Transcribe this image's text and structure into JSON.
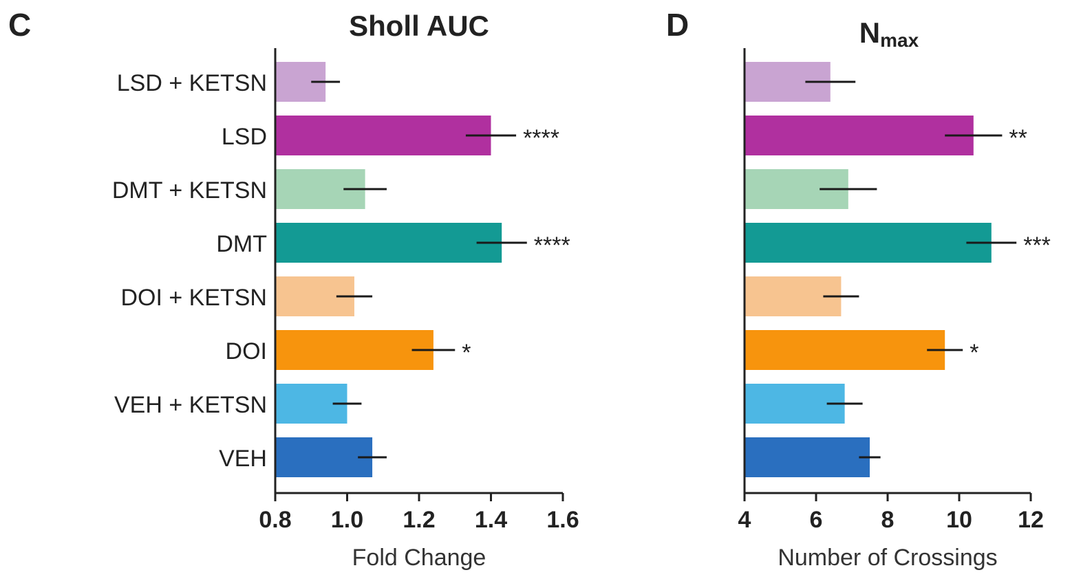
{
  "chart_data": [
    {
      "type": "bar",
      "orientation": "horizontal",
      "panel_label": "C",
      "title": "Sholl AUC",
      "xlabel": "Fold Change",
      "ylabel": "",
      "xlim": [
        0.8,
        1.6
      ],
      "xticks": [
        0.8,
        1.0,
        1.2,
        1.4,
        1.6
      ],
      "xtick_labels": [
        "0.8",
        "1.0",
        "1.2",
        "1.4",
        "1.6"
      ],
      "categories": [
        "LSD + KETSN",
        "LSD",
        "DMT + KETSN",
        "DMT",
        "DOI + KETSN",
        "DOI",
        "VEH + KETSN",
        "VEH"
      ],
      "values": [
        0.94,
        1.4,
        1.05,
        1.43,
        1.02,
        1.24,
        1.0,
        1.07
      ],
      "errors": [
        0.04,
        0.07,
        0.06,
        0.07,
        0.05,
        0.06,
        0.04,
        0.04
      ],
      "annotations": [
        "",
        "****",
        "",
        "****",
        "",
        "*",
        "",
        ""
      ],
      "colors": [
        "#c9a4d2",
        "#b0309f",
        "#a6d5b6",
        "#139a94",
        "#f7c490",
        "#f7940d",
        "#4db7e4",
        "#2a6fbf"
      ],
      "grid": false
    },
    {
      "type": "bar",
      "orientation": "horizontal",
      "panel_label": "D",
      "title": "N",
      "title_subscript": "max",
      "xlabel": "Number of Crossings",
      "ylabel": "",
      "xlim": [
        4,
        12
      ],
      "xticks": [
        4,
        6,
        8,
        10,
        12
      ],
      "xtick_labels": [
        "4",
        "6",
        "8",
        "10",
        "12"
      ],
      "categories": [
        "LSD + KETSN",
        "LSD",
        "DMT + KETSN",
        "DMT",
        "DOI + KETSN",
        "DOI",
        "VEH + KETSN",
        "VEH"
      ],
      "values": [
        6.4,
        10.4,
        6.9,
        10.9,
        6.7,
        9.6,
        6.8,
        7.5
      ],
      "errors": [
        0.7,
        0.8,
        0.8,
        0.7,
        0.5,
        0.5,
        0.5,
        0.3
      ],
      "annotations": [
        "",
        "**",
        "",
        "***",
        "",
        "*",
        "",
        ""
      ],
      "colors": [
        "#c9a4d2",
        "#b0309f",
        "#a6d5b6",
        "#139a94",
        "#f7c490",
        "#f7940d",
        "#4db7e4",
        "#2a6fbf"
      ],
      "grid": false
    }
  ]
}
